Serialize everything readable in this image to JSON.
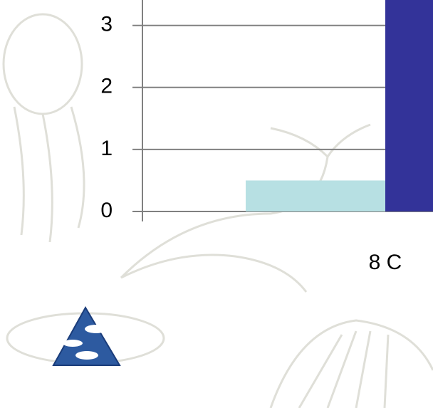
{
  "chart_data": {
    "type": "bar",
    "categories": [
      "8 C"
    ],
    "series": [
      {
        "color": "#b7e0e3",
        "values": [
          0.5
        ]
      },
      {
        "color": "#333399",
        "values": [
          3.5
        ]
      }
    ],
    "ylim": [
      0,
      3.41
    ],
    "yticks": [
      0,
      1,
      2,
      3
    ],
    "grid": true
  }
}
